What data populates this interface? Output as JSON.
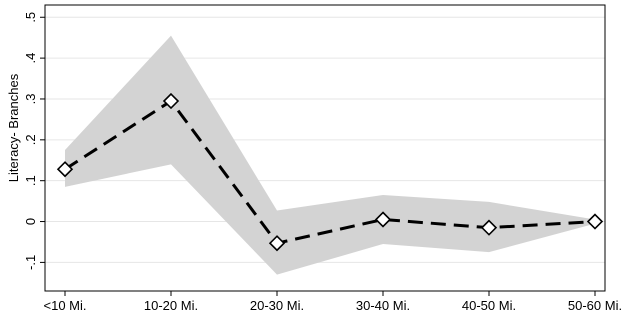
{
  "chart_data": {
    "type": "line",
    "title": "",
    "xlabel": "",
    "ylabel": "Literacy- Branches",
    "categories": [
      "<10 Mi.",
      "10-20 Mi.",
      "20-30 Mi.",
      "30-40 Mi.",
      "40-50 Mi.",
      "50-60 Mi."
    ],
    "yticks": [
      -0.1,
      0,
      0.1,
      0.2,
      0.3,
      0.4,
      0.5
    ],
    "ytick_labels": [
      "-.1",
      "0",
      ".1",
      ".2",
      ".3",
      ".4",
      ".5"
    ],
    "ylim": [
      -0.17,
      0.53
    ],
    "grid": true,
    "series": [
      {
        "values": [
          0.128,
          0.295,
          -0.053,
          0.005,
          -0.015,
          0.0
        ],
        "ci_upper": [
          0.175,
          0.455,
          0.027,
          0.065,
          0.048,
          0.005
        ],
        "ci_lower": [
          0.085,
          0.14,
          -0.13,
          -0.055,
          -0.075,
          -0.005
        ],
        "line_color": "#000000",
        "band_color": "#d3d3d3",
        "marker": "diamond-open",
        "line_style": "dashed"
      }
    ]
  }
}
